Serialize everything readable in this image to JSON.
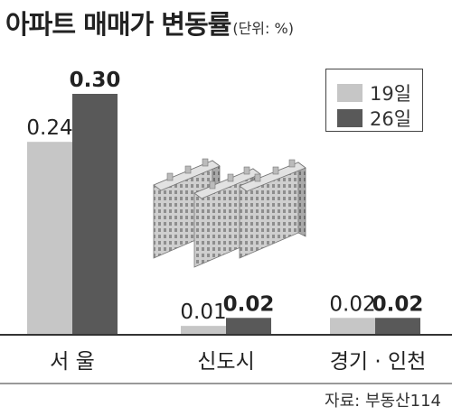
{
  "header": {
    "title": "아파트 매매가 변동률",
    "unit": "(단위: %)"
  },
  "source": "자료: 부동산114",
  "colors": {
    "series_19": "#c6c6c6",
    "series_26": "#595959",
    "baseline": "#333333",
    "divider": "#333333"
  },
  "chart_data": {
    "type": "bar",
    "categories": [
      "서 울",
      "신도시",
      "경기 · 인천"
    ],
    "series": [
      {
        "name": "19일",
        "values": [
          0.24,
          0.01,
          0.02
        ],
        "labels": [
          "0.24",
          "0.01",
          "0.02"
        ]
      },
      {
        "name": "26일",
        "values": [
          0.3,
          0.02,
          0.02
        ],
        "labels": [
          "0.30",
          "0.02",
          "0.02"
        ]
      }
    ],
    "ylim": [
      0,
      0.3
    ],
    "legend": "top-right",
    "grid": false
  }
}
